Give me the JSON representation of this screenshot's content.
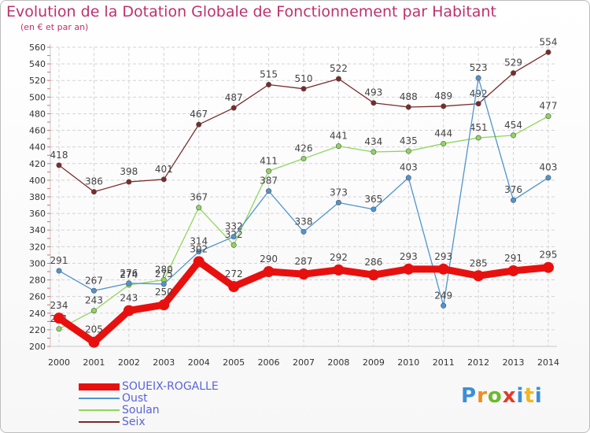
{
  "title": "Evolution de la Dotation Globale de Fonctionnement par Habitant",
  "subtitle": "(en € et par an)",
  "logo": {
    "text": "Proxiti"
  },
  "chart_data": {
    "type": "line",
    "x": [
      "2000",
      "2001",
      "2002",
      "2003",
      "2004",
      "2005",
      "2006",
      "2007",
      "2008",
      "2009",
      "2010",
      "2011",
      "2012",
      "2013",
      "2014"
    ],
    "ylim": [
      200,
      560
    ],
    "yticks": [
      200,
      220,
      240,
      260,
      280,
      300,
      320,
      340,
      360,
      380,
      400,
      420,
      440,
      460,
      480,
      500,
      520,
      540,
      560
    ],
    "grid": true,
    "legend_position": "bottom-left",
    "series": [
      {
        "name": "SOUEIX-ROGALLE",
        "color": "#e8100e",
        "values": [
          234,
          205,
          243,
          250,
          302,
          272,
          290,
          287,
          292,
          286,
          293,
          293,
          285,
          291,
          295
        ]
      },
      {
        "name": "Oust",
        "color": "#4f94cf",
        "values": [
          291,
          267,
          276,
          275,
          314,
          332,
          387,
          338,
          373,
          365,
          403,
          249,
          523,
          376,
          403
        ]
      },
      {
        "name": "Soulan",
        "color": "#8fd65b",
        "values": [
          221,
          243,
          274,
          280,
          367,
          322,
          411,
          426,
          441,
          434,
          435,
          444,
          451,
          454,
          477
        ]
      },
      {
        "name": "Seix",
        "color": "#7b2a2a",
        "values": [
          418,
          386,
          398,
          401,
          467,
          487,
          515,
          510,
          522,
          493,
          488,
          489,
          492,
          529,
          554
        ]
      }
    ]
  }
}
